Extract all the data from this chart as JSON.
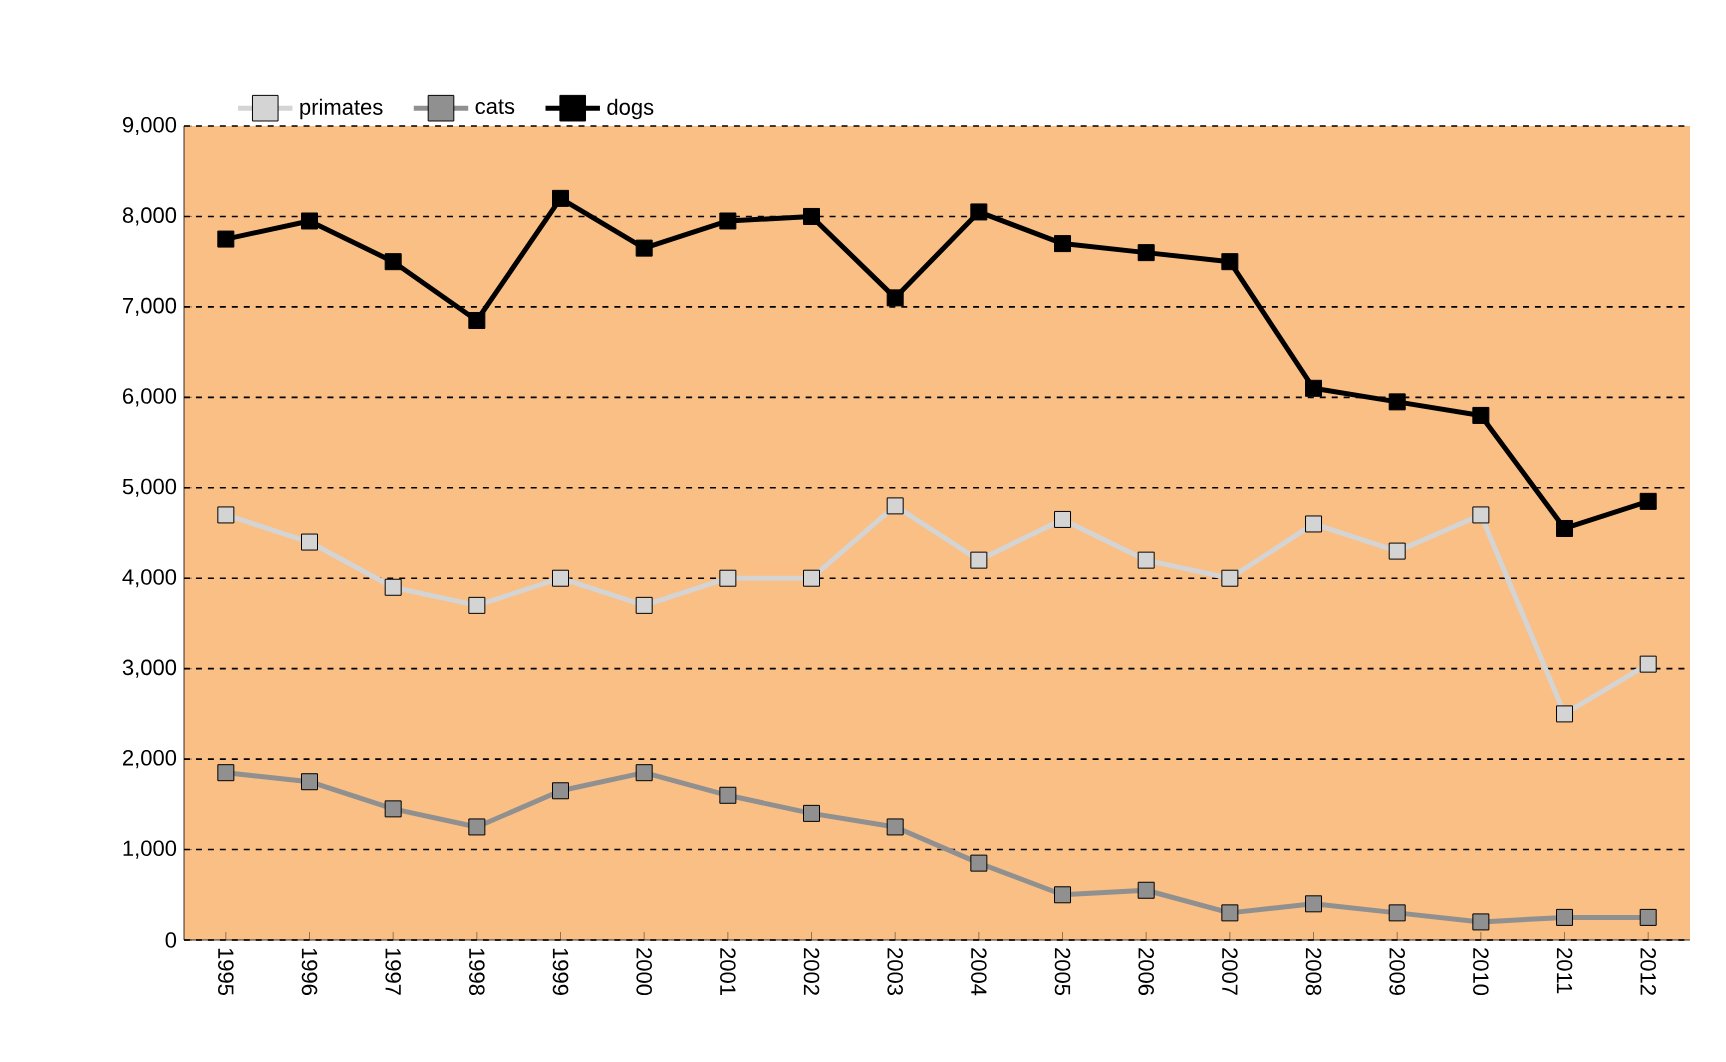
{
  "chart_data": {
    "type": "line",
    "categories": [
      "1995",
      "1996",
      "1997",
      "1998",
      "1999",
      "2000",
      "2001",
      "2002",
      "2003",
      "2004",
      "2005",
      "2006",
      "2007",
      "2008",
      "2009",
      "2010",
      "2011",
      "2012"
    ],
    "series": [
      {
        "name": "primates",
        "color": "#d4d4d4",
        "values": [
          4700,
          4400,
          3900,
          3700,
          4000,
          3700,
          4000,
          4000,
          4800,
          4200,
          4650,
          4200,
          4000,
          4600,
          4300,
          4700,
          2500,
          3050
        ]
      },
      {
        "name": "cats",
        "color": "#909090",
        "values": [
          1850,
          1750,
          1450,
          1250,
          1650,
          1850,
          1600,
          1400,
          1250,
          850,
          500,
          550,
          300,
          400,
          300,
          200,
          250,
          250
        ]
      },
      {
        "name": "dogs",
        "color": "#000000",
        "values": [
          7750,
          7950,
          7500,
          6850,
          8200,
          7650,
          7950,
          8000,
          7100,
          8050,
          7700,
          7600,
          7500,
          6100,
          5950,
          5800,
          4550,
          4850
        ]
      }
    ],
    "ylim": [
      0,
      9000
    ],
    "yticks": [
      0,
      {
        "value": 1000,
        "label": "1,000"
      },
      {
        "value": 2000,
        "label": "2,000"
      },
      {
        "value": 3000,
        "label": "3,000"
      },
      {
        "value": 4000,
        "label": "4,000"
      },
      {
        "value": 5000,
        "label": "5,000"
      },
      {
        "value": 6000,
        "label": "6,000"
      },
      {
        "value": 7000,
        "label": "7,000"
      },
      {
        "value": 8000,
        "label": "8,000"
      },
      {
        "value": 9000,
        "label": "9,000"
      }
    ],
    "grid": "y",
    "legend": "top",
    "marker": "square",
    "line_style": "solid"
  }
}
